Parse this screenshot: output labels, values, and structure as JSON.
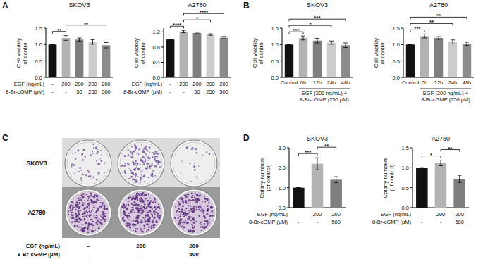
{
  "chart_data": [
    {
      "type": "bar",
      "title": "SKOV3",
      "y_label": [
        "Cell viability",
        "of control"
      ],
      "categories": [
        null,
        null,
        null,
        null,
        null
      ],
      "values": [
        1.0,
        1.2,
        1.15,
        1.08,
        0.98
      ],
      "errors": [
        0,
        0.07,
        0.05,
        0.07,
        0.08
      ],
      "colors": [
        "#111111",
        "#b3b3b3",
        "#7f7f7f",
        "#cccccc",
        "#8c8c8c"
      ],
      "ylim": [
        0,
        1.5
      ],
      "yticks": [
        {
          "value": 0,
          "label": "0.0"
        },
        0.5,
        {
          "value": 1,
          "label": "1.0"
        },
        1.5
      ],
      "condition_rows": [
        {
          "label": "EGF (ng/mL)",
          "values": [
            "-",
            "200",
            "200",
            "200",
            "200"
          ]
        },
        {
          "label": "8-Br-cGMP (μM)",
          "values": [
            "-",
            "-",
            "50",
            "250",
            "500"
          ]
        }
      ],
      "significance": [
        {
          "from": 0,
          "to": 1,
          "label": "**"
        },
        {
          "from": 1,
          "to": 4,
          "label": "**"
        }
      ]
    },
    {
      "type": "bar",
      "title": "A2780",
      "y_label": [
        "Cell viability",
        "of control"
      ],
      "categories": [
        null,
        null,
        null,
        null,
        null
      ],
      "values": [
        1.0,
        1.21,
        1.17,
        1.13,
        1.05
      ],
      "errors": [
        0,
        0.03,
        0.02,
        0.02,
        0.03
      ],
      "colors": [
        "#111111",
        "#b3b3b3",
        "#7f7f7f",
        "#cccccc",
        "#8c8c8c"
      ],
      "ylim": [
        0,
        1.3
      ],
      "yticks": [
        {
          "value": 0,
          "label": "0.0"
        },
        0.4,
        0.8,
        1.2
      ],
      "condition_rows": [
        {
          "label": "EGF (ng/mL)",
          "values": [
            "-",
            "200",
            "200",
            "200",
            "200"
          ]
        },
        {
          "label": "8-Br-cGMP (μM)",
          "values": [
            "-",
            "-",
            "50",
            "250",
            "500"
          ]
        }
      ],
      "significance": [
        {
          "from": 0,
          "to": 1,
          "label": "****"
        },
        {
          "from": 1,
          "to": 3,
          "label": "*"
        },
        {
          "from": 1,
          "to": 4,
          "label": "****"
        }
      ]
    },
    {
      "type": "bar",
      "title": "SKOV3",
      "y_label": [
        "Cell viability",
        "of control"
      ],
      "categories": [
        "Control",
        "0h",
        "12h",
        "24h",
        "48h"
      ],
      "values": [
        1.0,
        1.2,
        1.12,
        1.06,
        0.98
      ],
      "errors": [
        0,
        0.06,
        0.07,
        0.05,
        0.07
      ],
      "colors": [
        "#111111",
        "#b3b3b3",
        "#7f7f7f",
        "#cccccc",
        "#8c8c8c"
      ],
      "ylim": [
        0,
        1.5
      ],
      "yticks": [
        {
          "value": 0,
          "label": "0.0"
        },
        0.5,
        {
          "value": 1,
          "label": "1.0"
        },
        1.5
      ],
      "group": {
        "label_lines": [
          "EGF (200 ng/mL) +",
          "8-Br-cGMP (250 μM)"
        ],
        "from": 1,
        "to": 4
      },
      "significance": [
        {
          "from": 0,
          "to": 1,
          "label": "***"
        },
        {
          "from": 0,
          "to": 3,
          "label": "*"
        },
        {
          "from": 0,
          "to": 4,
          "label": "***"
        }
      ]
    },
    {
      "type": "bar",
      "title": "A2780",
      "y_label": [
        "Cell viability",
        "of control"
      ],
      "categories": [
        "Control",
        "0h",
        "12h",
        "24h",
        "48h"
      ],
      "values": [
        1.0,
        1.26,
        1.2,
        1.08,
        1.02
      ],
      "errors": [
        0,
        0.06,
        0.04,
        0.06,
        0.05
      ],
      "colors": [
        "#111111",
        "#b3b3b3",
        "#7f7f7f",
        "#cccccc",
        "#8c8c8c"
      ],
      "ylim": [
        0,
        1.5
      ],
      "yticks": [
        {
          "value": 0,
          "label": "0.0"
        },
        0.5,
        {
          "value": 1,
          "label": "1.0"
        },
        1.5
      ],
      "group": {
        "label_lines": [
          "EGF (200 ng/mL) +",
          "8-Br-cGMP (250 μM)"
        ],
        "from": 1,
        "to": 4
      },
      "significance": [
        {
          "from": 0,
          "to": 1,
          "label": "***"
        },
        {
          "from": 0,
          "to": 3,
          "label": "**"
        },
        {
          "from": 0,
          "to": 4,
          "label": "**"
        }
      ]
    },
    {
      "type": "bar",
      "title": "SKOV3",
      "y_label": [
        "Colony numbers",
        "(of control)"
      ],
      "categories": [
        null,
        null,
        null
      ],
      "values": [
        1.0,
        2.2,
        1.4
      ],
      "errors": [
        0,
        0.3,
        0.15
      ],
      "colors": [
        "#111111",
        "#b3b3b3",
        "#7f7f7f"
      ],
      "ylim": [
        0,
        3
      ],
      "yticks": [
        {
          "value": 0,
          "label": "0.0"
        },
        {
          "value": 1,
          "label": "1.0"
        },
        {
          "value": 2,
          "label": "2.0"
        },
        {
          "value": 3,
          "label": "3.0"
        }
      ],
      "condition_rows": [
        {
          "label": "EGF (ng/mL)",
          "values": [
            "-",
            "200",
            "200"
          ]
        },
        {
          "label": "8-Br-cGMP (μM)",
          "values": [
            "-",
            "-",
            "500"
          ]
        }
      ],
      "significance": [
        {
          "from": 0,
          "to": 1,
          "label": "***"
        },
        {
          "from": 1,
          "to": 2,
          "label": "**"
        }
      ]
    },
    {
      "type": "bar",
      "title": "A2780",
      "y_label": [
        "Colony numbers",
        "(of control)"
      ],
      "categories": [
        null,
        null,
        null
      ],
      "values": [
        1.0,
        1.12,
        0.72
      ],
      "errors": [
        0,
        0.07,
        0.09
      ],
      "colors": [
        "#111111",
        "#b3b3b3",
        "#7f7f7f"
      ],
      "ylim": [
        0,
        1.5
      ],
      "yticks": [
        {
          "value": 0,
          "label": "0.0"
        },
        0.5,
        {
          "value": 1,
          "label": "1.0"
        },
        1.5
      ],
      "condition_rows": [
        {
          "label": "EGF (ng/mL)",
          "values": [
            "-",
            "200",
            "200"
          ]
        },
        {
          "label": "8-Br-cGMP (μM)",
          "values": [
            "-",
            "-",
            "500"
          ]
        }
      ],
      "significance": [
        {
          "from": 0,
          "to": 1,
          "label": "*"
        },
        {
          "from": 1,
          "to": 2,
          "label": "**"
        }
      ]
    }
  ],
  "panel_labels": [
    "A",
    "B",
    "C",
    "D"
  ],
  "panel_c": {
    "row_labels": [
      "SKOV3",
      "A2780"
    ],
    "condition_rows": [
      {
        "label": "EGF (ng/mL)",
        "values": [
          "–",
          "200",
          "200"
        ]
      },
      {
        "label": "8-Br-cGMP (μM)",
        "values": [
          "–",
          "–",
          "500"
        ]
      }
    ]
  }
}
